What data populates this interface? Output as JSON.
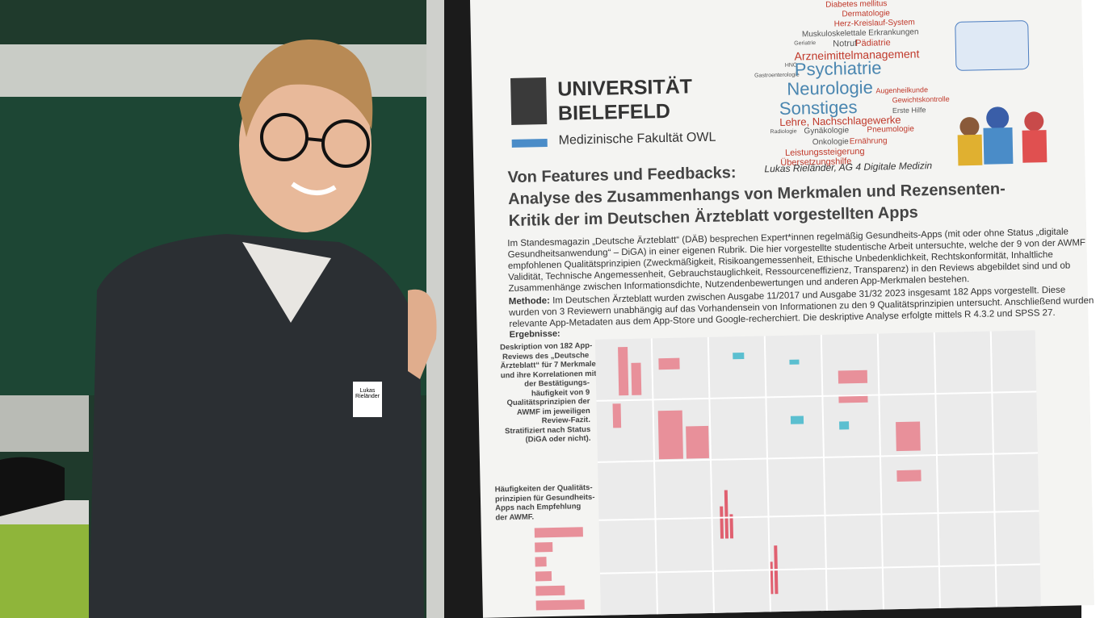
{
  "poster": {
    "logo": [
      "UNIVERSITÄT",
      "BIELEFELD"
    ],
    "faculty": "Medizinische Fakultät OWL",
    "word_cloud": [
      "Diabetes mellitus",
      "Dermatologie",
      "Herz-Kreislauf-System",
      "Muskuloskelettale Erkrankungen",
      "Geriatrie",
      "Notruf",
      "Pädiatrie",
      "Arzneimittelmanagement",
      "HNO",
      "Gastroenterologie",
      "Psychiatrie",
      "Neurologie",
      "Augenheilkunde",
      "Sonstiges",
      "Gewichtskontrolle",
      "Erste Hilfe",
      "Lehre, Nachschlagewerke",
      "Radiologie",
      "Gynäkologie",
      "Pneumologie",
      "Onkologie",
      "Ernährung",
      "Leistungssteigerung",
      "Übersetzungshilfe"
    ],
    "author": "Lukas Rieländer, AG 4 Digitale Medizin",
    "title": [
      "Von Features und Feedbacks:",
      "Analyse des Zusammenhangs von Merkmalen und Rezensenten-",
      "Kritik der im Deutschen Ärzteblatt vorgestellten Apps"
    ],
    "intro": [
      "Im Standesmagazin „Deutsche Ärzteblatt“ (DÄB) besprechen Expert*innen regelmäßig Gesundheits-Apps (mit oder ohne Status „digitale",
      "Gesundheitsanwendung“ – DiGA) in einer eigenen Rubrik. Die hier vorgestellte studentische Arbeit untersuchte, welche der 9 von der AWMF",
      "empfohlenen Qualitätsprinzipien (Zweckmäßigkeit, Risikoangemessenheit, Ethische Unbedenklichkeit, Rechtskonformität, Inhaltliche",
      "Validität, Technische Angemessenheit, Gebrauchstauglichkeit, Ressourceneffizienz, Transparenz) in den Reviews abgebildet sind und ob",
      "Zusammenhänge zwischen Informationsdichte, Nutzendenbewertungen und anderen App-Merkmalen bestehen."
    ],
    "methods_label": "Methode:",
    "methods": [
      "Im Deutschen Ärzteblatt wurden zwischen Ausgabe 11/2017 und Ausgabe 31/32 2023 insgesamt 182 Apps vorgestellt. Diese",
      "wurden von 3 Reviewern unabhängig auf das Vorhandensein von Informationen zu den 9 Qualitätsprinzipien untersucht. Anschließend wurden",
      "relevante App-Metadaten aus dem App-Store und Google-recherchiert. Die deskriptive Analyse erfolgte mittels R 4.3.2 und SPSS 27."
    ],
    "results_label": "Ergebnisse:",
    "description": [
      "Deskription von 182 App-",
      "Reviews des „Deutsche",
      "Ärzteblatt“ für 7 Merkmale",
      "und ihre Korrelationen mit",
      "der Bestätigungs-",
      "häufigkeit von 9",
      "Qualitätsprinzipien der",
      "AWMF im jeweiligen",
      "Review-Fazit.",
      "Stratifiziert nach Status",
      "(DiGA oder nicht)."
    ],
    "frequencies": [
      "Häufigkeiten der Qualitäts-",
      "prinzipien für Gesundheits-",
      "Apps nach Empfehlung",
      "der AWMF."
    ]
  },
  "badge": [
    "Lukas",
    "Rieländer"
  ]
}
